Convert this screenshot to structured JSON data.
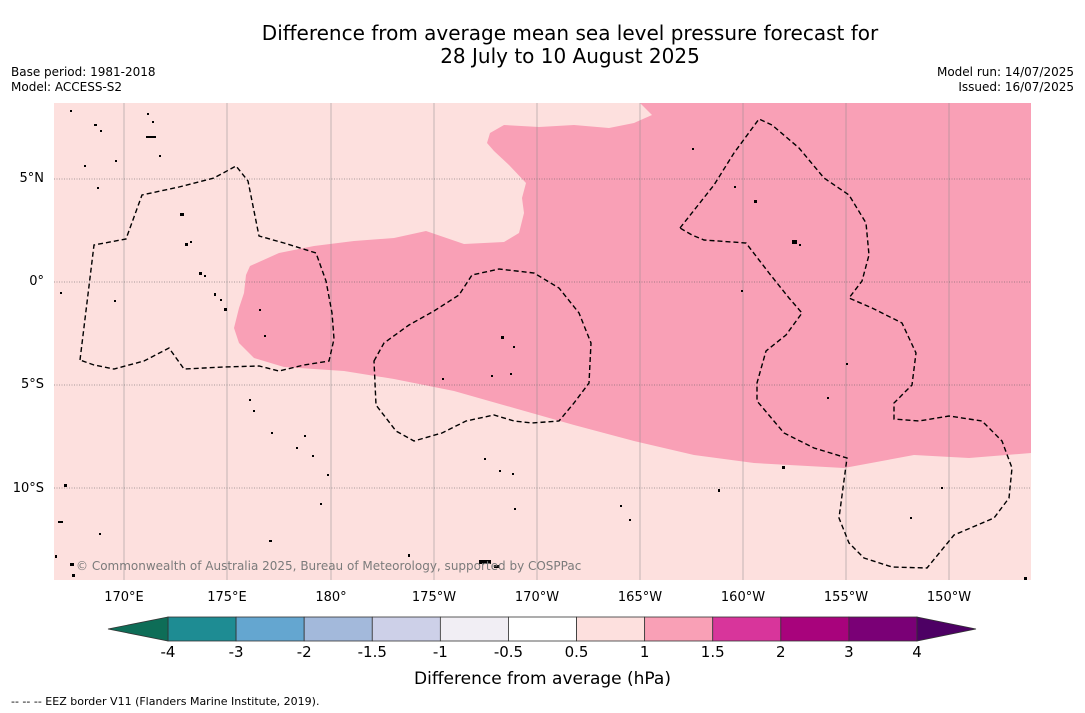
{
  "title_line1": "Difference from average mean sea level pressure forecast for",
  "title_line2": "28 July to 10 August 2025",
  "base_period": "Base period: 1981-2018",
  "model": "Model: ACCESS-S2",
  "model_run": "Model run: 14/07/2025",
  "issued": "Issued: 16/07/2025",
  "copyright": "© Commonwealth of Australia 2025, Bureau of Meteorology, supported by COSPPac",
  "lat_labels": [
    "5°N",
    "0°",
    "5°S",
    "10°S"
  ],
  "lon_labels": [
    "170°E",
    "175°E",
    "180°",
    "175°W",
    "170°W",
    "165°W",
    "160°W",
    "155°W",
    "150°W"
  ],
  "colorbar": {
    "label": "Difference from average (hPa)",
    "ticks": [
      "-4",
      "-3",
      "-2",
      "-1.5",
      "-1",
      "-0.5",
      "0.5",
      "1",
      "1.5",
      "2",
      "3",
      "4"
    ],
    "colors": [
      "#1e8c93",
      "#64a6d0",
      "#a3b9db",
      "#cdd0e8",
      "#f1eef4",
      "#ffffff",
      "#fde0de",
      "#f9a0b6",
      "#d8359b",
      "#a8037c",
      "#7a0076"
    ],
    "under_color": "#0e6d57",
    "over_color": "#4d0064"
  },
  "legend_note": "--  --  -- EEZ border V11 (Flanders Marine Institute, 2019).",
  "map_colors": {
    "light_pink": "#fde0de",
    "mid_pink": "#f9a0b6"
  }
}
